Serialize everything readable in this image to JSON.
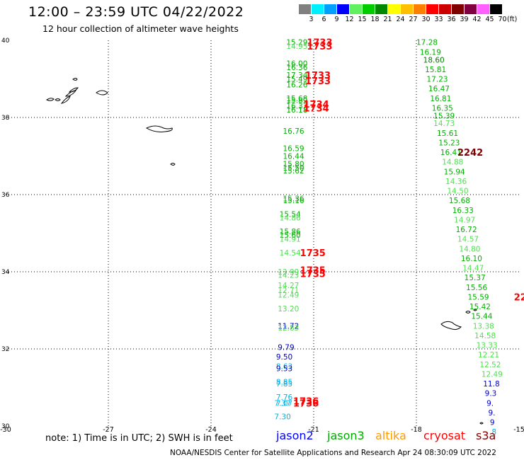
{
  "header": {
    "title": "12:00 – 23:59 UTC 04/22/2022",
    "subtitle": "12 hour collection of altimeter wave heights"
  },
  "color_scale": {
    "unit": "(ft)",
    "bins": [
      {
        "label": "3",
        "color": "#808080"
      },
      {
        "label": "6",
        "color": "#00f0ff"
      },
      {
        "label": "9",
        "color": "#00a0ff"
      },
      {
        "label": "12",
        "color": "#0000ff"
      },
      {
        "label": "15",
        "color": "#60f060"
      },
      {
        "label": "18",
        "color": "#00cc00"
      },
      {
        "label": "21",
        "color": "#008800"
      },
      {
        "label": "24",
        "color": "#ffff00"
      },
      {
        "label": "27",
        "color": "#ffc000"
      },
      {
        "label": "30",
        "color": "#ff8000"
      },
      {
        "label": "33",
        "color": "#ff0000"
      },
      {
        "label": "36",
        "color": "#cc0000"
      },
      {
        "label": "39",
        "color": "#800000"
      },
      {
        "label": "42",
        "color": "#800040"
      },
      {
        "label": "45",
        "color": "#ff60ff"
      },
      {
        "label": "70",
        "color": "#000000"
      }
    ]
  },
  "chart_data": {
    "type": "scatter",
    "title": "12:00 – 23:59 UTC 04/22/2022",
    "subtitle": "12 hour collection of altimeter wave heights",
    "xlim": [
      -30,
      -15
    ],
    "ylim": [
      30,
      40
    ],
    "x_ticks": [
      "-30",
      "-27",
      "-24",
      "-21",
      "-18",
      "-15"
    ],
    "y_ticks": [
      "30",
      "32",
      "34",
      "36",
      "38",
      "40"
    ],
    "grid": true,
    "tracks": [
      {
        "name": "jason3",
        "color": "#00aa00",
        "points": [
          {
            "x": -21.8,
            "y": 39.95,
            "v": "15.29"
          },
          {
            "x": -21.8,
            "y": 39.85,
            "v": "14.95"
          },
          {
            "x": -21.8,
            "y": 39.4,
            "v": "16.00"
          },
          {
            "x": -21.8,
            "y": 39.3,
            "v": "16.36"
          },
          {
            "x": -21.8,
            "y": 39.1,
            "v": "17.34"
          },
          {
            "x": -21.8,
            "y": 39.0,
            "v": "15.49"
          },
          {
            "x": -21.8,
            "y": 38.85,
            "v": "16.26"
          },
          {
            "x": -21.8,
            "y": 38.5,
            "v": "15.68"
          },
          {
            "x": -21.8,
            "y": 38.45,
            "v": "15.89"
          },
          {
            "x": -21.8,
            "y": 38.3,
            "v": "16.37"
          },
          {
            "x": -21.8,
            "y": 38.2,
            "v": "16.18"
          },
          {
            "x": -21.9,
            "y": 37.65,
            "v": "16.76"
          },
          {
            "x": -21.9,
            "y": 37.2,
            "v": "16.59"
          },
          {
            "x": -21.9,
            "y": 37.0,
            "v": "16.44"
          },
          {
            "x": -21.9,
            "y": 36.8,
            "v": "15.80"
          },
          {
            "x": -21.9,
            "y": 36.7,
            "v": "15.50"
          },
          {
            "x": -21.9,
            "y": 36.62,
            "v": "15.62"
          },
          {
            "x": -21.9,
            "y": 35.9,
            "v": "15.36"
          },
          {
            "x": -21.9,
            "y": 35.85,
            "v": "15.16"
          },
          {
            "x": -22.0,
            "y": 35.5,
            "v": "15.54"
          },
          {
            "x": -22.0,
            "y": 35.4,
            "v": "14.86"
          },
          {
            "x": -22.0,
            "y": 35.05,
            "v": "15.86"
          },
          {
            "x": -22.0,
            "y": 34.95,
            "v": "15.60"
          },
          {
            "x": -22.0,
            "y": 34.85,
            "v": "14.91"
          },
          {
            "x": -22.0,
            "y": 34.5,
            "v": "14.54"
          },
          {
            "x": -22.05,
            "y": 34.0,
            "v": "13.99"
          },
          {
            "x": -22.05,
            "y": 33.92,
            "v": "14.23"
          },
          {
            "x": -22.05,
            "y": 33.65,
            "v": "14.27"
          },
          {
            "x": -22.05,
            "y": 33.52,
            "v": "12.71"
          },
          {
            "x": -22.05,
            "y": 33.4,
            "v": "12.49"
          },
          {
            "x": -22.05,
            "y": 33.05,
            "v": "13.20"
          },
          {
            "x": -22.05,
            "y": 32.6,
            "v": "11.72"
          },
          {
            "x": -22.05,
            "y": 32.55,
            "v": "12.83"
          },
          {
            "x": -22.05,
            "y": 32.05,
            "v": "9.79"
          },
          {
            "x": -22.1,
            "y": 31.8,
            "v": "9.50"
          },
          {
            "x": -22.1,
            "y": 31.55,
            "v": "8.63"
          },
          {
            "x": -22.1,
            "y": 31.5,
            "v": "9.53"
          },
          {
            "x": -22.1,
            "y": 31.15,
            "v": "8.85"
          },
          {
            "x": -22.1,
            "y": 31.1,
            "v": "7.85"
          },
          {
            "x": -22.1,
            "y": 30.75,
            "v": "7.76"
          },
          {
            "x": -22.1,
            "y": 30.6,
            "v": "7.07"
          },
          {
            "x": -22.15,
            "y": 30.6,
            "v": "7.37"
          },
          {
            "x": -22.15,
            "y": 30.25,
            "v": "7.30"
          },
          {
            "x": -18.0,
            "y": 39.95,
            "v": "17.28"
          },
          {
            "x": -17.9,
            "y": 39.7,
            "v": "16.19"
          },
          {
            "x": -17.8,
            "y": 39.5,
            "v": "18.60"
          },
          {
            "x": -17.75,
            "y": 39.25,
            "v": "15.81"
          },
          {
            "x": -17.7,
            "y": 39.0,
            "v": "17.23"
          },
          {
            "x": -17.65,
            "y": 38.75,
            "v": "16.47"
          },
          {
            "x": -17.6,
            "y": 38.5,
            "v": "16.81"
          },
          {
            "x": -17.55,
            "y": 38.25,
            "v": "16.35"
          },
          {
            "x": -17.5,
            "y": 38.05,
            "v": "15.39"
          },
          {
            "x": -17.5,
            "y": 37.85,
            "v": "14.73"
          },
          {
            "x": -17.4,
            "y": 37.6,
            "v": "15.61"
          },
          {
            "x": -17.35,
            "y": 37.35,
            "v": "15.23"
          },
          {
            "x": -17.3,
            "y": 37.1,
            "v": "16.41"
          },
          {
            "x": -17.25,
            "y": 36.85,
            "v": "14.88"
          },
          {
            "x": -17.2,
            "y": 36.6,
            "v": "15.94"
          },
          {
            "x": -17.15,
            "y": 36.35,
            "v": "14.36"
          },
          {
            "x": -17.1,
            "y": 36.1,
            "v": "14.50"
          },
          {
            "x": -17.05,
            "y": 35.85,
            "v": "15.68"
          },
          {
            "x": -16.95,
            "y": 35.6,
            "v": "16.33"
          },
          {
            "x": -16.9,
            "y": 35.35,
            "v": "14.97"
          },
          {
            "x": -16.85,
            "y": 35.1,
            "v": "16.72"
          },
          {
            "x": -16.8,
            "y": 34.85,
            "v": "14.57"
          },
          {
            "x": -16.75,
            "y": 34.6,
            "v": "14.80"
          },
          {
            "x": -16.7,
            "y": 34.35,
            "v": "16.10"
          },
          {
            "x": -16.65,
            "y": 34.1,
            "v": "14.47"
          },
          {
            "x": -16.6,
            "y": 33.85,
            "v": "15.37"
          },
          {
            "x": -16.55,
            "y": 33.6,
            "v": "15.56"
          },
          {
            "x": -16.5,
            "y": 33.35,
            "v": "15.59"
          },
          {
            "x": -16.45,
            "y": 33.1,
            "v": "15.42"
          },
          {
            "x": -16.4,
            "y": 32.85,
            "v": "15.44"
          },
          {
            "x": -16.35,
            "y": 32.6,
            "v": "13.38"
          },
          {
            "x": -16.3,
            "y": 32.35,
            "v": "14.58"
          },
          {
            "x": -16.25,
            "y": 32.1,
            "v": "13.33"
          },
          {
            "x": -16.2,
            "y": 31.85,
            "v": "12.21"
          },
          {
            "x": -16.15,
            "y": 31.6,
            "v": "12.52"
          },
          {
            "x": -16.1,
            "y": 31.35,
            "v": "12.49"
          },
          {
            "x": -16.05,
            "y": 31.1,
            "v": "11.8"
          },
          {
            "x": -16.0,
            "y": 30.85,
            "v": "9.3"
          },
          {
            "x": -15.95,
            "y": 30.6,
            "v": "9."
          },
          {
            "x": -15.9,
            "y": 30.35,
            "v": "9."
          },
          {
            "x": -15.85,
            "y": 30.1,
            "v": "9"
          },
          {
            "x": -15.8,
            "y": 29.85,
            "v": "8"
          }
        ]
      }
    ],
    "time_labels": [
      {
        "x": -21.2,
        "y": 39.95,
        "t": "1733"
      },
      {
        "x": -21.2,
        "y": 39.85,
        "t": "1733"
      },
      {
        "x": -21.25,
        "y": 39.1,
        "t": "1733"
      },
      {
        "x": -21.25,
        "y": 38.95,
        "t": "1733"
      },
      {
        "x": -21.3,
        "y": 38.35,
        "t": "1734"
      },
      {
        "x": -21.3,
        "y": 38.25,
        "t": "1734"
      },
      {
        "x": -21.4,
        "y": 34.5,
        "t": "1735"
      },
      {
        "x": -21.4,
        "y": 34.05,
        "t": "1735"
      },
      {
        "x": -21.4,
        "y": 33.95,
        "t": "1735"
      },
      {
        "x": -21.6,
        "y": 30.65,
        "t": "1736"
      },
      {
        "x": -21.6,
        "y": 30.6,
        "t": "1736"
      },
      {
        "x": -16.8,
        "y": 37.1,
        "t": "2242"
      },
      {
        "x": -15.15,
        "y": 33.35,
        "t": "22"
      }
    ],
    "islands": "Azores and Madeira coastlines"
  },
  "note": "note: 1) Time is in UTC; 2) SWH is in feet",
  "legend": [
    {
      "label": "jason2",
      "color": "#0000ff"
    },
    {
      "label": "jason3",
      "color": "#00aa00"
    },
    {
      "label": "altika",
      "color": "#ff9900"
    },
    {
      "label": "cryosat",
      "color": "#ff0000"
    },
    {
      "label": "s3a",
      "color": "#800000"
    }
  ],
  "footer": "NOAA/NESDIS Center for Satellite Applications and Research    Apr 24 08:30:09 UTC 2022"
}
